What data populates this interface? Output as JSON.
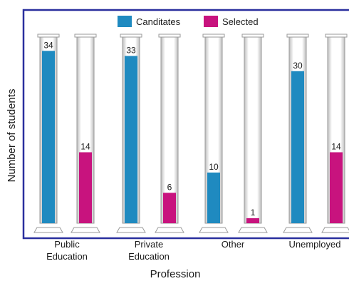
{
  "chart_data": {
    "type": "bar",
    "title": "",
    "xlabel": "Profession",
    "ylabel": "Number of students",
    "categories": [
      [
        "Public",
        "Education"
      ],
      [
        "Private",
        "Education"
      ],
      [
        "Other"
      ],
      [
        "Unemployed"
      ]
    ],
    "series": [
      {
        "name": "Canditates",
        "color": "#1f8ac0",
        "values": [
          34,
          33,
          10,
          30
        ]
      },
      {
        "name": "Selected",
        "color": "#c8137e",
        "values": [
          14,
          6,
          1,
          14
        ]
      }
    ],
    "data_labels": [
      [
        "34",
        "14"
      ],
      [
        "33",
        "6"
      ],
      [
        "10",
        "1"
      ],
      [
        "30",
        "14"
      ]
    ],
    "ylim": [
      0,
      37
    ],
    "grid": false,
    "legend_position": "top-center"
  }
}
